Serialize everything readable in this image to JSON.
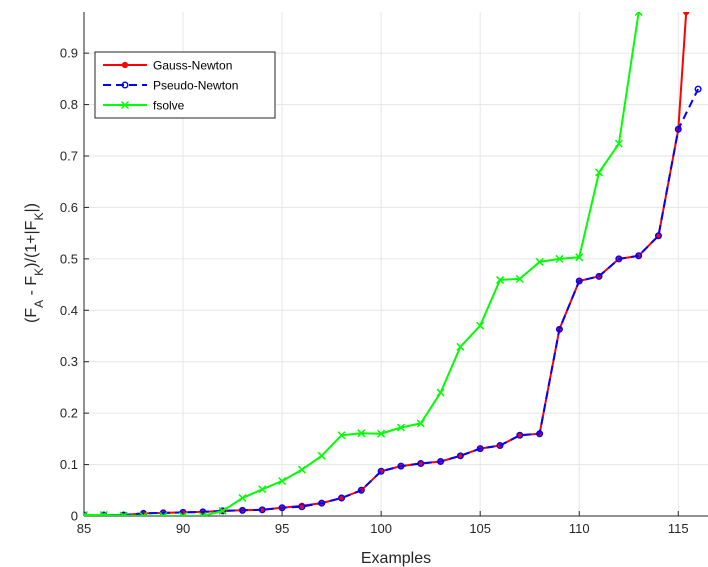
{
  "chart_data": {
    "type": "line",
    "xlabel": "Examples",
    "ylabel": "(F_A - F_K)/(1+|F_K|)",
    "xlim": [
      85,
      116.5
    ],
    "ylim": [
      0,
      0.98
    ],
    "xticks": [
      85,
      90,
      95,
      100,
      105,
      110,
      115
    ],
    "yticks": [
      0,
      0.1,
      0.2,
      0.3,
      0.4,
      0.5,
      0.6,
      0.7,
      0.8,
      0.9
    ],
    "grid": true,
    "legend_position": "top-left",
    "series": [
      {
        "name": "Gauss-Newton",
        "color": "#ff0000",
        "line_style": "solid",
        "marker": "dot",
        "x": [
          85,
          86,
          87,
          88,
          89,
          90,
          91,
          92,
          93,
          94,
          95,
          96,
          97,
          98,
          99,
          100,
          101,
          102,
          103,
          104,
          105,
          106,
          107,
          108,
          109,
          110,
          111,
          112,
          113,
          114,
          115,
          115.4
        ],
        "y": [
          0.002,
          0.002,
          0.002,
          0.005,
          0.006,
          0.007,
          0.008,
          0.01,
          0.011,
          0.012,
          0.016,
          0.02,
          0.025,
          0.035,
          0.05,
          0.087,
          0.097,
          0.102,
          0.106,
          0.117,
          0.131,
          0.137,
          0.157,
          0.16,
          0.363,
          0.457,
          0.466,
          0.5,
          0.506,
          0.545,
          0.752,
          0.98
        ]
      },
      {
        "name": "Pseudo-Newton",
        "color": "#0000ff",
        "line_style": "dashed",
        "marker": "circle",
        "x": [
          85,
          86,
          87,
          88,
          89,
          90,
          91,
          92,
          93,
          94,
          95,
          96,
          97,
          98,
          99,
          100,
          101,
          102,
          103,
          104,
          105,
          106,
          107,
          108,
          109,
          110,
          111,
          112,
          113,
          114,
          115,
          116
        ],
        "y": [
          0.002,
          0.002,
          0.002,
          0.005,
          0.006,
          0.007,
          0.008,
          0.01,
          0.011,
          0.012,
          0.016,
          0.018,
          0.025,
          0.035,
          0.05,
          0.087,
          0.097,
          0.102,
          0.106,
          0.117,
          0.131,
          0.137,
          0.157,
          0.16,
          0.363,
          0.457,
          0.466,
          0.5,
          0.506,
          0.545,
          0.752,
          0.83
        ]
      },
      {
        "name": "fsolve",
        "color": "#00ff00",
        "line_style": "solid",
        "marker": "x",
        "x": [
          85,
          86,
          87,
          88,
          89,
          90,
          91,
          92,
          93,
          94,
          95,
          96,
          97,
          98,
          99,
          100,
          101,
          102,
          103,
          104,
          105,
          106,
          107,
          108,
          109,
          110,
          111,
          112,
          113
        ],
        "y": [
          0.002,
          0.002,
          0.001,
          0.0,
          0.0,
          0.0,
          0.0,
          0.01,
          0.035,
          0.052,
          0.068,
          0.09,
          0.117,
          0.157,
          0.161,
          0.16,
          0.172,
          0.18,
          0.24,
          0.329,
          0.37,
          0.459,
          0.461,
          0.494,
          0.5,
          0.503,
          0.668,
          0.724,
          0.98
        ]
      }
    ]
  }
}
